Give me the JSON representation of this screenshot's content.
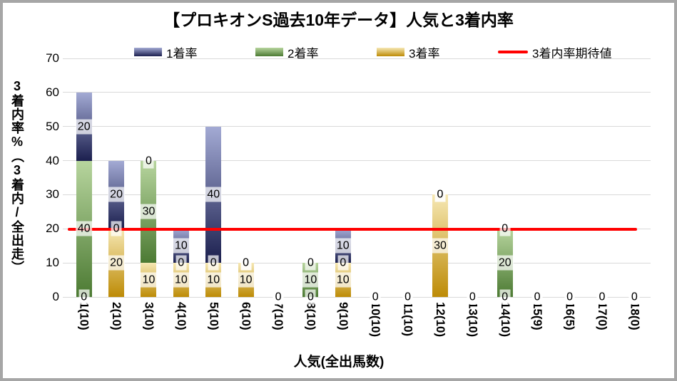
{
  "window": {
    "frame_color": "#a6a6a6",
    "background": "#ffffff",
    "text_color": "#000000"
  },
  "chart_data": {
    "type": "bar",
    "stacked": true,
    "title": "【プロキオンS過去10年データ】人気と3着内率",
    "xlabel": "人気(全出馬数)",
    "ylabel": "3着内率%（3着内/全出走）",
    "ylim": [
      0,
      70
    ],
    "yticks": [
      0,
      10,
      20,
      30,
      40,
      50,
      60,
      70
    ],
    "grid": true,
    "gridline_color": "#d9d9d9",
    "legend_position": "top",
    "categories": [
      "1(10)",
      "2(10)",
      "3(10)",
      "4(10)",
      "5(10)",
      "6(10)",
      "7(10)",
      "8(10)",
      "9(10)",
      "10(10)",
      "11(10)",
      "12(10)",
      "13(10)",
      "14(10)",
      "15(9)",
      "16(5)",
      "17(0)",
      "18(0)"
    ],
    "series": [
      {
        "name": "1着率",
        "color_top": "#a3aad4",
        "color_bottom": "#1b1f4e",
        "values": [
          20,
          20,
          0,
          10,
          40,
          0,
          0,
          0,
          10,
          0,
          0,
          0,
          0,
          0,
          0,
          0,
          0,
          0
        ]
      },
      {
        "name": "2着率",
        "color_top": "#b7d59e",
        "color_bottom": "#4c7a33",
        "values": [
          40,
          0,
          30,
          0,
          0,
          0,
          0,
          10,
          0,
          0,
          0,
          0,
          0,
          20,
          0,
          0,
          0,
          0
        ]
      },
      {
        "name": "3着率",
        "color_top": "#f6e8b4",
        "color_bottom": "#bd8b06",
        "values": [
          0,
          20,
          10,
          10,
          10,
          10,
          0,
          0,
          10,
          0,
          0,
          30,
          0,
          0,
          0,
          0,
          0,
          0
        ]
      }
    ],
    "stack_order_bottom_to_top": [
      "3着率",
      "2着率",
      "1着率"
    ],
    "reference_line": {
      "label": "3着内率期待値",
      "value": 19.8,
      "color": "#ff0000"
    },
    "data_labels": true,
    "data_label_background": "rgba(255,255,255,0.72)"
  }
}
